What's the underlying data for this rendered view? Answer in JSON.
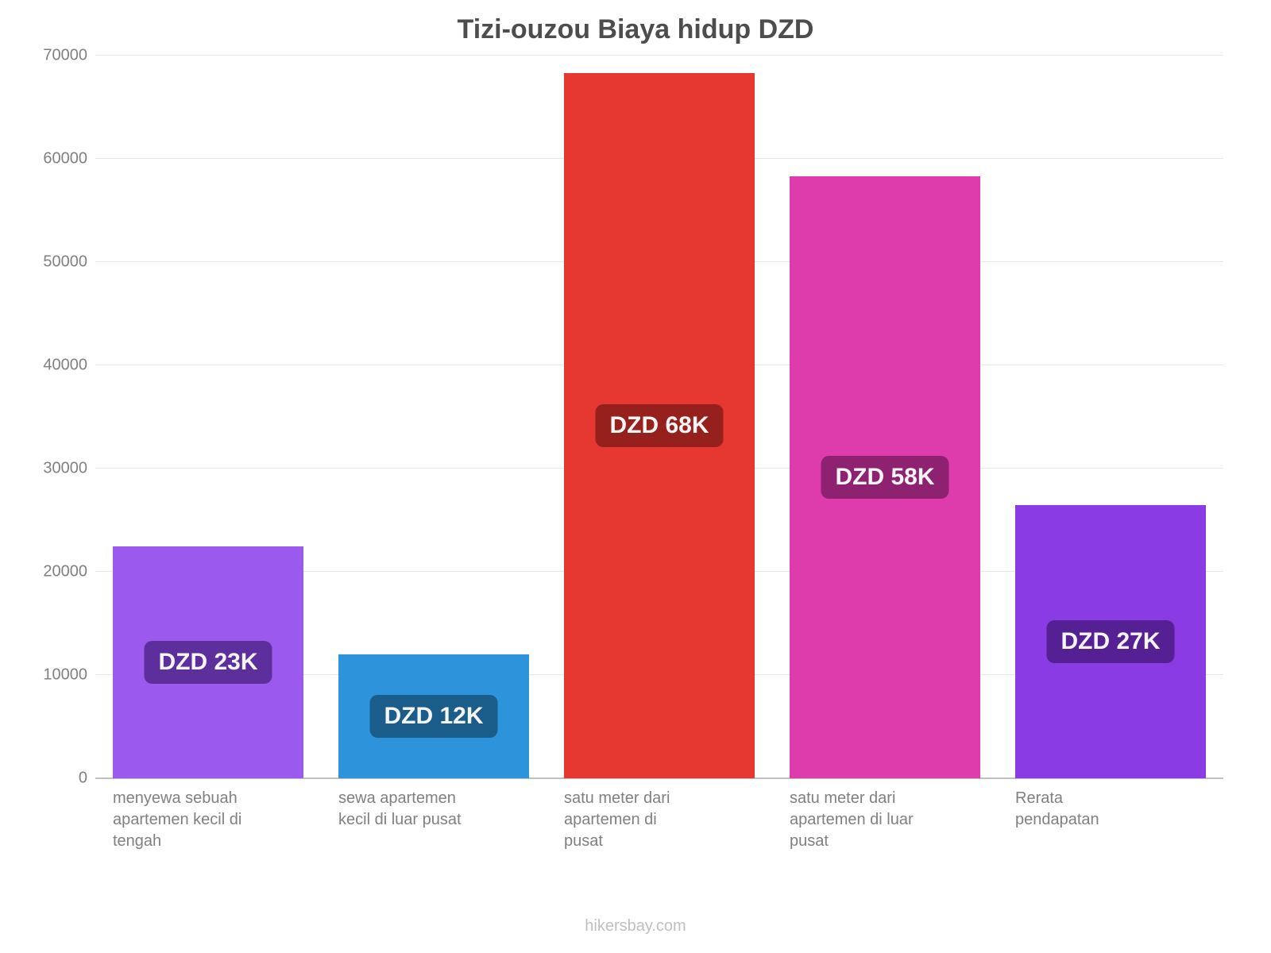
{
  "chart": {
    "type": "bar",
    "title": "Tizi-ouzou Biaya hidup DZD",
    "title_color": "#4d4d4d",
    "title_fontsize": 34,
    "background_color": "#ffffff",
    "grid_color": "#e6e6e6",
    "axis_label_color": "#808080",
    "axis_label_fontsize": 20,
    "ylim": [
      0,
      70000
    ],
    "ytick_step": 10000,
    "yticks": [
      {
        "value": 0,
        "label": "0"
      },
      {
        "value": 10000,
        "label": "10000"
      },
      {
        "value": 20000,
        "label": "20000"
      },
      {
        "value": 30000,
        "label": "30000"
      },
      {
        "value": 40000,
        "label": "40000"
      },
      {
        "value": 50000,
        "label": "50000"
      },
      {
        "value": 60000,
        "label": "60000"
      },
      {
        "value": 70000,
        "label": "70000"
      }
    ],
    "bars": [
      {
        "category": "menyewa sebuah apartemen kecil di tengah",
        "value": 22500,
        "value_label": "DZD 23K",
        "bar_color": "#9b59ed",
        "badge_color": "#5d2f9c"
      },
      {
        "category": "sewa apartemen kecil di luar pusat",
        "value": 12000,
        "value_label": "DZD 12K",
        "bar_color": "#2d93db",
        "badge_color": "#1a5c8a"
      },
      {
        "category": "satu meter dari apartemen di pusat",
        "value": 68333,
        "value_label": "DZD 68K",
        "bar_color": "#e63731",
        "badge_color": "#96201c"
      },
      {
        "category": "satu meter dari apartemen di luar pusat",
        "value": 58333,
        "value_label": "DZD 58K",
        "bar_color": "#de3bac",
        "badge_color": "#8f2171"
      },
      {
        "category": "Rerata pendapatan",
        "value": 26500,
        "value_label": "DZD 27K",
        "bar_color": "#8a3be3",
        "badge_color": "#542093"
      }
    ],
    "attribution": "hikersbay.com",
    "attribution_color": "#bfbfbf"
  }
}
